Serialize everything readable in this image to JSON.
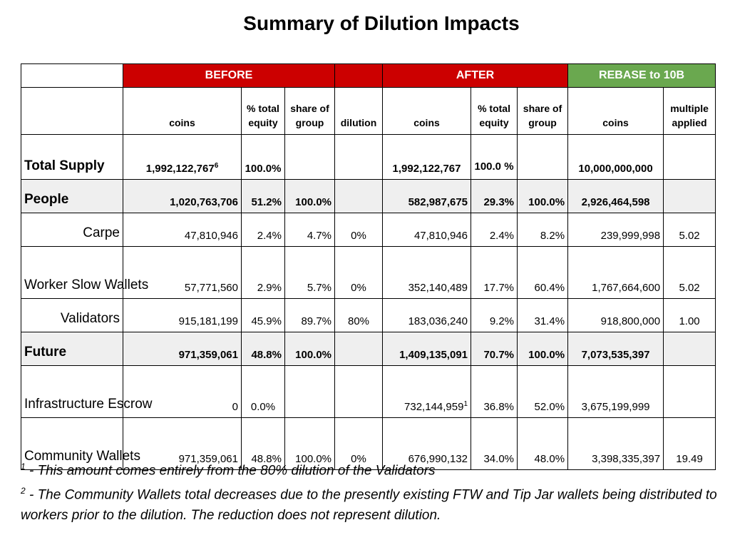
{
  "title": "Summary of Dilution Impacts",
  "colors": {
    "before": "#cc0000",
    "after": "#cc0000",
    "rebase": "#6aa84f",
    "group_row": "#efefef"
  },
  "bands": {
    "before": "BEFORE",
    "after": "AFTER",
    "rebase": "REBASE to 10B"
  },
  "headers": {
    "coins": "coins",
    "pct_total_equity": "% total equity",
    "share_of_group": "share of group",
    "dilution": "dilution",
    "multiple_applied": "multiple applied"
  },
  "rows": [
    {
      "label": "Total Supply",
      "before_coins": "1,992,122,767",
      "before_coins_sup": "6",
      "before_pct": "100.0%",
      "before_share": "",
      "dilution": "",
      "after_coins": "1,992,122,767",
      "after_coins_sup": "",
      "after_pct": "100.0 %",
      "after_share": "",
      "rebase_coins": "10,000,000,000",
      "multiple": ""
    },
    {
      "label": "People",
      "before_coins": "1,020,763,706",
      "before_coins_sup": "",
      "before_pct": "51.2%",
      "before_share": "100.0%",
      "dilution": "",
      "after_coins": "582,987,675",
      "after_coins_sup": "",
      "after_pct": "29.3%",
      "after_share": "100.0%",
      "rebase_coins": "2,926,464,598",
      "multiple": ""
    },
    {
      "label": "Carpe",
      "before_coins": "47,810,946",
      "before_coins_sup": "",
      "before_pct": "2.4%",
      "before_share": "4.7%",
      "dilution": "0%",
      "after_coins": "47,810,946",
      "after_coins_sup": "",
      "after_pct": "2.4%",
      "after_share": "8.2%",
      "rebase_coins": "239,999,998",
      "multiple": "5.02"
    },
    {
      "label": "Worker Slow Wallets",
      "before_coins": "57,771,560",
      "before_coins_sup": "",
      "before_pct": "2.9%",
      "before_share": "5.7%",
      "dilution": "0%",
      "after_coins": "352,140,489",
      "after_coins_sup": "",
      "after_pct": "17.7%",
      "after_share": "60.4%",
      "rebase_coins": "1,767,664,600",
      "multiple": "5.02"
    },
    {
      "label": "Validators",
      "before_coins": "915,181,199",
      "before_coins_sup": "",
      "before_pct": "45.9%",
      "before_share": "89.7%",
      "dilution": "80%",
      "after_coins": "183,036,240",
      "after_coins_sup": "",
      "after_pct": "9.2%",
      "after_share": "31.4%",
      "rebase_coins": "918,800,000",
      "multiple": "1.00"
    },
    {
      "label": "Future",
      "before_coins": "971,359,061",
      "before_coins_sup": "",
      "before_pct": "48.8%",
      "before_share": "100.0%",
      "dilution": "",
      "after_coins": "1,409,135,091",
      "after_coins_sup": "",
      "after_pct": "70.7%",
      "after_share": "100.0%",
      "rebase_coins": "7,073,535,397",
      "multiple": ""
    },
    {
      "label": "Infrastructure Escrow",
      "before_coins": "0",
      "before_coins_sup": "",
      "before_pct": "0.0%",
      "before_share": "",
      "dilution": "",
      "after_coins": "732,144,959",
      "after_coins_sup": "1",
      "after_pct": "36.8%",
      "after_share": "52.0%",
      "rebase_coins": "3,675,199,999",
      "multiple": ""
    },
    {
      "label": "Community Wallets",
      "before_coins": "971,359,061",
      "before_coins_sup": "",
      "before_pct": "48.8%",
      "before_share": "100.0%",
      "dilution": "0%",
      "after_coins": "676,990,132",
      "after_coins_sup": "",
      "after_pct": "34.0%",
      "after_share": "48.0%",
      "rebase_coins": "3,398,335,397",
      "multiple": "19.49"
    }
  ],
  "footnotes": [
    {
      "mark": "1",
      "text": " - This amount comes entirely from the 80% dilution of the Validators"
    },
    {
      "mark": "2",
      "text": " - The Community Wallets total decreases due to the presently existing FTW and Tip Jar wallets being distributed to workers prior to the dilution. The reduction does not represent dilution."
    }
  ]
}
